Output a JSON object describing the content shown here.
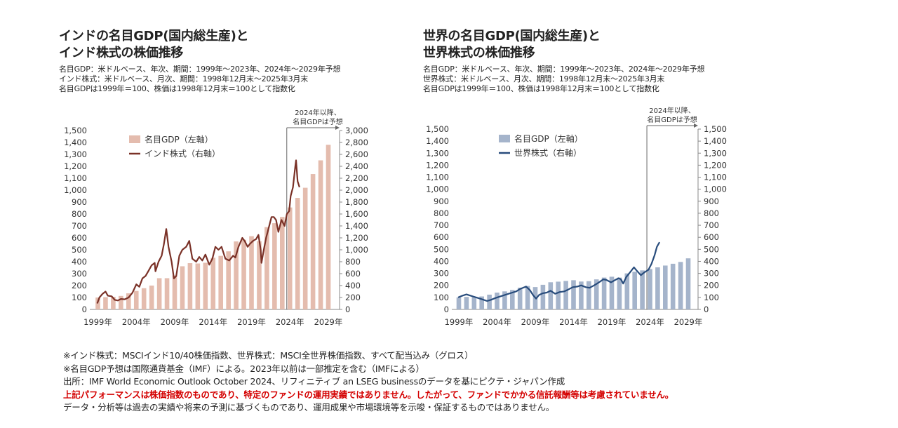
{
  "charts": [
    {
      "id": "india",
      "title_line1": "インドの名目GDP(国内総生産)と",
      "title_line2": "インド株式の株価推移",
      "subtitle": [
        "名目GDP：米ドルベース、年次、期間：1999年～2023年、2024年～2029年予想",
        "インド株式：米ドルベース、月次、期間：1998年12月末～2025年3月末",
        "名目GDPは1999年＝100、株価は1998年12月末＝100として指数化"
      ],
      "forecast_label_line1": "2024年以降、",
      "forecast_label_line2": "名目GDPは予想",
      "legend": [
        "名目GDP（左軸）",
        "インド株式（右軸）"
      ]
    },
    {
      "id": "world",
      "title_line1": "世界の名目GDP(国内総生産)と",
      "title_line2": "世界株式の株価推移",
      "subtitle": [
        "名目GDP：米ドルベース、年次、期間：1999年～2023年、2024年～2029年予想",
        "世界株式：米ドルベース、月次、期間：1998年12月末～2025年3月末",
        "名目GDPは1999年＝100、株価は1998年12月末＝100として指数化"
      ],
      "forecast_label_line1": "2024年以降、",
      "forecast_label_line2": "名目GDPは予想",
      "legend": [
        "名目GDP（左軸）",
        "世界株式（右軸）"
      ]
    }
  ],
  "notes": [
    "※インド株式：MSCIインド10/40株価指数、世界株式：MSCI全世界株価指数、すべて配当込み（グロス）",
    "※名目GDP予想は国際通貨基金（IMF）による。2023年以前は一部推定を含む（IMFによる）",
    "出所：IMF World Economic Outlook October 2024、リフィニティブ an LSEG businessのデータを基にピクテ・ジャパン作成"
  ],
  "notes_red": "上記パフォーマンスは株価指数のものであり、特定のファンドの運用実績ではありません。したがって、ファンドでかかる信託報酬等は考慮されていません。",
  "notes_last": "データ・分析等は過去の実績や将来の予測に基づくものであり、運用成果や市場環境等を示唆・保証するものではありません。",
  "chart_data": [
    {
      "type": "bar+line",
      "title": "インドの名目GDP(国内総生産)とインド株式の株価推移",
      "x_ticks": [
        "1999年",
        "2004年",
        "2009年",
        "2014年",
        "2019年",
        "2024年",
        "2029年"
      ],
      "x_range": [
        1999,
        2029
      ],
      "forecast_from": 2024,
      "left_axis": {
        "min": 0,
        "max": 1500,
        "step": 100
      },
      "right_axis": {
        "min": 0,
        "max": 3000,
        "step": 200
      },
      "legend_position": "top-left",
      "grid": false,
      "colors": {
        "bar": "#e4bcae",
        "line": "#7a3127"
      },
      "series": [
        {
          "name": "名目GDP（左軸）",
          "kind": "bar",
          "axis": "left",
          "x": [
            1999,
            2000,
            2001,
            2002,
            2003,
            2004,
            2005,
            2006,
            2007,
            2008,
            2009,
            2010,
            2011,
            2012,
            2013,
            2014,
            2015,
            2016,
            2017,
            2018,
            2019,
            2020,
            2021,
            2022,
            2023,
            2024,
            2025,
            2026,
            2027,
            2028,
            2029
          ],
          "values": [
            100,
            103,
            106,
            113,
            135,
            155,
            178,
            200,
            262,
            262,
            285,
            362,
            388,
            385,
            391,
            433,
            449,
            487,
            570,
            584,
            614,
            572,
            690,
            723,
            775,
            855,
            935,
            1020,
            1135,
            1250,
            1380
          ]
        },
        {
          "name": "インド株式（右軸）",
          "kind": "line",
          "axis": "right",
          "x": [
            1998.92,
            1999.2,
            1999.6,
            2000.0,
            2000.3,
            2000.8,
            2001.2,
            2001.6,
            2002.0,
            2002.5,
            2003.0,
            2003.5,
            2004.0,
            2004.4,
            2004.8,
            2005.2,
            2005.6,
            2006.0,
            2006.4,
            2006.5,
            2006.9,
            2007.3,
            2007.6,
            2007.9,
            2008.2,
            2008.6,
            2008.9,
            2009.2,
            2009.6,
            2010.0,
            2010.5,
            2010.9,
            2011.3,
            2011.8,
            2012.2,
            2012.6,
            2013.0,
            2013.5,
            2013.9,
            2014.3,
            2014.7,
            2015.1,
            2015.6,
            2016.1,
            2016.6,
            2016.9,
            2017.3,
            2017.8,
            2018.1,
            2018.5,
            2018.8,
            2019.2,
            2019.6,
            2019.9,
            2020.2,
            2020.3,
            2020.6,
            2020.9,
            2021.2,
            2021.6,
            2021.9,
            2022.2,
            2022.5,
            2022.9,
            2023.3,
            2023.6,
            2023.9,
            2024.1,
            2024.4,
            2024.7,
            2024.8,
            2025.0,
            2025.25
          ],
          "values": [
            100,
            200,
            260,
            300,
            230,
            220,
            160,
            150,
            175,
            170,
            200,
            280,
            420,
            380,
            520,
            560,
            650,
            740,
            780,
            640,
            800,
            900,
            1100,
            1350,
            1050,
            800,
            520,
            560,
            900,
            1000,
            1050,
            1150,
            850,
            800,
            880,
            820,
            920,
            750,
            850,
            1050,
            1000,
            1050,
            850,
            820,
            900,
            870,
            1050,
            1200,
            1150,
            1050,
            1100,
            1150,
            1180,
            1250,
            1000,
            780,
            1000,
            1200,
            1350,
            1550,
            1550,
            1500,
            1300,
            1500,
            1400,
            1600,
            1650,
            1900,
            2050,
            2400,
            2500,
            2150,
            2050
          ]
        }
      ]
    },
    {
      "type": "bar+line",
      "title": "世界の名目GDP(国内総生産)と世界株式の株価推移",
      "x_ticks": [
        "1999年",
        "2004年",
        "2009年",
        "2014年",
        "2019年",
        "2024年",
        "2029年"
      ],
      "x_range": [
        1999,
        2029
      ],
      "forecast_from": 2024,
      "left_axis": {
        "min": 0,
        "max": 1500,
        "step": 100
      },
      "right_axis": {
        "min": 0,
        "max": 1500,
        "step": 100
      },
      "legend_position": "top-left",
      "grid": false,
      "colors": {
        "bar": "#a5b4cb",
        "line": "#284c7c"
      },
      "series": [
        {
          "name": "名目GDP（左軸）",
          "kind": "bar",
          "axis": "left",
          "x": [
            1999,
            2000,
            2001,
            2002,
            2003,
            2004,
            2005,
            2006,
            2007,
            2008,
            2009,
            2010,
            2011,
            2012,
            2013,
            2014,
            2015,
            2016,
            2017,
            2018,
            2019,
            2020,
            2021,
            2022,
            2023,
            2024,
            2025,
            2026,
            2027,
            2028,
            2029
          ],
          "values": [
            100,
            104,
            103,
            108,
            123,
            140,
            150,
            162,
            181,
            195,
            186,
            205,
            226,
            231,
            237,
            243,
            232,
            235,
            250,
            265,
            272,
            265,
            300,
            313,
            325,
            336,
            350,
            365,
            380,
            395,
            425
          ]
        },
        {
          "name": "世界株式（右軸）",
          "kind": "line",
          "axis": "right",
          "x": [
            1998.92,
            1999.5,
            2000.0,
            2000.5,
            2001.0,
            2001.5,
            2002.0,
            2002.7,
            2003.2,
            2003.8,
            2004.5,
            2005.0,
            2005.5,
            2006.0,
            2006.5,
            2007.0,
            2007.8,
            2008.3,
            2008.7,
            2009.1,
            2009.5,
            2010.0,
            2010.5,
            2011.0,
            2011.6,
            2012.2,
            2012.8,
            2013.3,
            2013.9,
            2014.5,
            2015.0,
            2015.6,
            2016.1,
            2016.7,
            2017.2,
            2017.9,
            2018.3,
            2018.9,
            2019.3,
            2019.9,
            2020.2,
            2020.5,
            2020.9,
            2021.4,
            2021.9,
            2022.3,
            2022.8,
            2023.3,
            2023.8,
            2024.2,
            2024.6,
            2024.9,
            2025.25
          ],
          "values": [
            100,
            115,
            125,
            115,
            105,
            95,
            85,
            70,
            80,
            95,
            110,
            120,
            130,
            140,
            150,
            170,
            190,
            160,
            120,
            90,
            120,
            135,
            140,
            155,
            130,
            145,
            150,
            165,
            185,
            190,
            200,
            185,
            180,
            200,
            220,
            250,
            245,
            225,
            240,
            260,
            250,
            215,
            270,
            310,
            350,
            320,
            285,
            310,
            330,
            380,
            450,
            520,
            560
          ]
        }
      ]
    }
  ]
}
